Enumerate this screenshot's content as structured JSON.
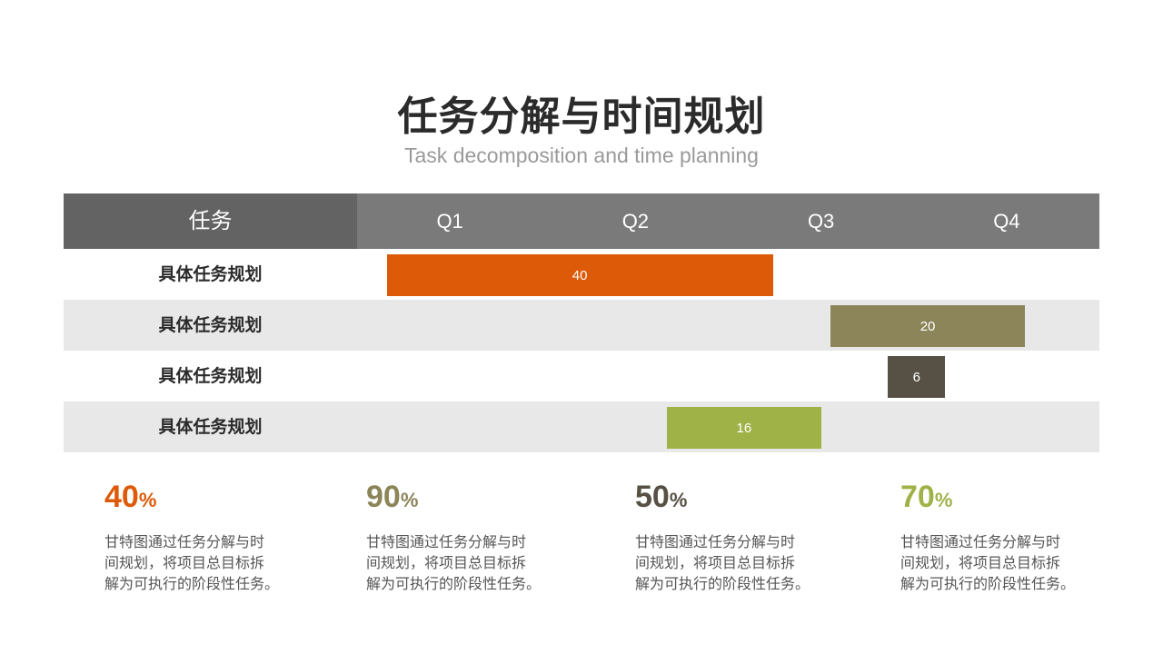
{
  "title": "任务分解与时间规划",
  "subtitle": "Task decomposition and time planning",
  "chart_data": {
    "type": "gantt",
    "header_task_label": "任务",
    "quarters": [
      "Q1",
      "Q2",
      "Q3",
      "Q4"
    ],
    "axis": {
      "min": 0,
      "max": 4
    },
    "tasks": [
      {
        "label": "具体任务规划",
        "start": 0.16,
        "end": 2.24,
        "value": "40",
        "color": "#dc5a08"
      },
      {
        "label": "具体任务规划",
        "start": 2.55,
        "end": 3.6,
        "value": "20",
        "color": "#8c855a"
      },
      {
        "label": "具体任务规划",
        "start": 2.86,
        "end": 3.17,
        "value": "6",
        "color": "#575045"
      },
      {
        "label": "具体任务规划",
        "start": 1.67,
        "end": 2.5,
        "value": "16",
        "color": "#9fb247"
      }
    ]
  },
  "stats": [
    {
      "value": "40",
      "unit": "%",
      "color": "#dc5a08",
      "desc_lines": [
        "甘特图通过任务分解与时",
        "间规划，将项目总目标拆",
        "解为可执行的阶段性任务。"
      ]
    },
    {
      "value": "90",
      "unit": "%",
      "color": "#8c855a",
      "desc_lines": [
        "甘特图通过任务分解与时",
        "间规划，将项目总目标拆",
        "解为可执行的阶段性任务。"
      ]
    },
    {
      "value": "50",
      "unit": "%",
      "color": "#575045",
      "desc_lines": [
        "甘特图通过任务分解与时",
        "间规划，将项目总目标拆",
        "解为可执行的阶段性任务。"
      ]
    },
    {
      "value": "70",
      "unit": "%",
      "color": "#9fb247",
      "desc_lines": [
        "甘特图通过任务分解与时",
        "间规划，将项目总目标拆",
        "解为可执行的阶段性任务。"
      ]
    }
  ]
}
